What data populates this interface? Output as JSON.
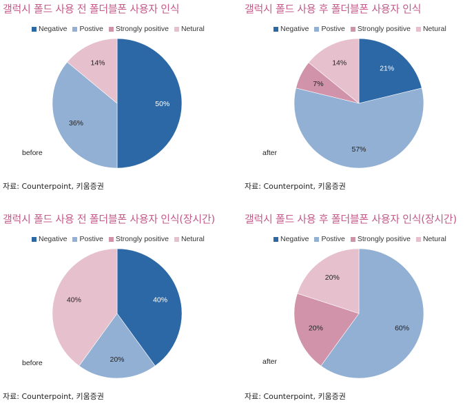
{
  "colors": {
    "Negative": "#2d68a6",
    "Postive": "#92afd4",
    "Strongly positive": "#d093a9",
    "Netural": "#e7c0cd",
    "title": "#c45a8a"
  },
  "chart_data": [
    {
      "type": "pie",
      "title": "갤럭시 폴드 사용 전 폴더블폰 사용자 인식",
      "legend": [
        "Negative",
        "Postive",
        "Strongly positive",
        "Netural"
      ],
      "slices": [
        {
          "label": "Negative",
          "value": 50,
          "text": "50%"
        },
        {
          "label": "Postive",
          "value": 36,
          "text": "36%"
        },
        {
          "label": "Netural",
          "value": 14,
          "text": "14%"
        }
      ],
      "note": "before",
      "source": "자료: Counterpoint, 키움증권"
    },
    {
      "type": "pie",
      "title": "갤럭시 폴드 사용 후 폴더블폰 사용자 인식",
      "legend": [
        "Negative",
        "Postive",
        "Strongly positive",
        "Netural"
      ],
      "slices": [
        {
          "label": "Negative",
          "value": 21,
          "text": "21%"
        },
        {
          "label": "Postive",
          "value": 57,
          "text": "57%"
        },
        {
          "label": "Strongly positive",
          "value": 7,
          "text": "7%"
        },
        {
          "label": "Netural",
          "value": 14,
          "text": "14%"
        }
      ],
      "note": "after",
      "source": "자료: Counterpoint, 키움증권"
    },
    {
      "type": "pie",
      "title": "갤럭시 폴드 사용 전 폴더블폰 사용자 인식(장시간)",
      "legend": [
        "Negative",
        "Postive",
        "Strongly positive",
        "Netural"
      ],
      "slices": [
        {
          "label": "Negative",
          "value": 40,
          "text": "40%"
        },
        {
          "label": "Postive",
          "value": 20,
          "text": "20%"
        },
        {
          "label": "Netural",
          "value": 40,
          "text": "40%"
        }
      ],
      "note": "before",
      "source": "자료: Counterpoint, 키움증권"
    },
    {
      "type": "pie",
      "title": "갤럭시 폴드 사용 후 폴더블폰 사용자 인식(장시간)",
      "legend": [
        "Negative",
        "Postive",
        "Strongly positive",
        "Netural"
      ],
      "slices": [
        {
          "label": "Postive",
          "value": 60,
          "text": "60%"
        },
        {
          "label": "Strongly positive",
          "value": 20,
          "text": "20%"
        },
        {
          "label": "Netural",
          "value": 20,
          "text": "20%"
        }
      ],
      "note": "after",
      "source": "자료: Counterpoint, 키움증권"
    }
  ]
}
